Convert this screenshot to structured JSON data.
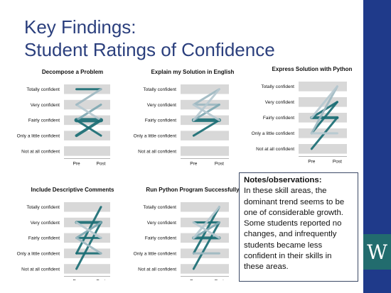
{
  "slide": {
    "title_line1": "Key Findings:",
    "title_line2": "Student Ratings of Confidence"
  },
  "notes": {
    "heading": "Notes/observations:",
    "body": "In these skill areas, the dominant trend seems to be one of considerable growth. Some students reported no changes, and infrequently students became less confident in their skills in these areas."
  },
  "chart_data": [
    {
      "type": "line",
      "title": "Decompose a Problem",
      "categories": [
        "Pre",
        "Post"
      ],
      "y_categories": [
        "Not at all confident",
        "Only a little confident",
        "Fairly confident",
        "Very confident",
        "Totally confident"
      ],
      "ylim": [
        0,
        4
      ],
      "series": [
        {
          "values": [
            4,
            4
          ],
          "color": "#1b6e75",
          "width": 3
        },
        {
          "values": [
            2,
            2
          ],
          "color": "#1b6e75",
          "width": 6
        },
        {
          "values": [
            2,
            3
          ],
          "color": "#7fa9b3",
          "width": 3
        },
        {
          "values": [
            3,
            2
          ],
          "color": "#b7c9d1",
          "width": 3
        },
        {
          "values": [
            1,
            2
          ],
          "color": "#1b6e75",
          "width": 4
        },
        {
          "values": [
            2,
            1
          ],
          "color": "#1b6e75",
          "width": 3
        },
        {
          "values": [
            3,
            4
          ],
          "color": "#9fb9c2",
          "width": 3
        }
      ]
    },
    {
      "type": "line",
      "title": "Explain my Solution in English",
      "categories": [
        "Pre",
        "Post"
      ],
      "y_categories": [
        "Not at all confident",
        "Only a little confident",
        "Fairly confident",
        "Very confident",
        "Totally confident"
      ],
      "ylim": [
        0,
        4
      ],
      "series": [
        {
          "values": [
            2,
            2
          ],
          "color": "#1b6e75",
          "width": 5
        },
        {
          "values": [
            3,
            3
          ],
          "color": "#9fb9c2",
          "width": 3
        },
        {
          "values": [
            3,
            4
          ],
          "color": "#9fb9c2",
          "width": 3
        },
        {
          "values": [
            2,
            3
          ],
          "color": "#7fa9b3",
          "width": 3
        },
        {
          "values": [
            1,
            2
          ],
          "color": "#1b6e75",
          "width": 3
        },
        {
          "values": [
            3,
            2
          ],
          "color": "#b7c9d1",
          "width": 3
        },
        {
          "values": [
            2,
            4
          ],
          "color": "#b7c9d1",
          "width": 3
        }
      ]
    },
    {
      "type": "line",
      "title": "Express Solution with Python",
      "categories": [
        "Pre",
        "Post"
      ],
      "y_categories": [
        "Not at all confident",
        "Only a little confident",
        "Fairly confident",
        "Very confident",
        "Totally confident"
      ],
      "ylim": [
        0,
        4
      ],
      "series": [
        {
          "values": [
            2,
            2
          ],
          "color": "#1b6e75",
          "width": 4
        },
        {
          "values": [
            2,
            3
          ],
          "color": "#1b6e75",
          "width": 3
        },
        {
          "values": [
            1,
            3
          ],
          "color": "#1b6e75",
          "width": 3
        },
        {
          "values": [
            0,
            2
          ],
          "color": "#1b6e75",
          "width": 3
        },
        {
          "values": [
            1,
            4
          ],
          "color": "#9fb9c2",
          "width": 3
        },
        {
          "values": [
            1,
            1
          ],
          "color": "#b7c9d1",
          "width": 3
        },
        {
          "values": [
            2,
            4
          ],
          "color": "#b7c9d1",
          "width": 3
        }
      ]
    },
    {
      "type": "line",
      "title": "Include Descriptive Comments",
      "categories": [
        "Pre",
        "Post"
      ],
      "y_categories": [
        "Not at all confident",
        "Only a little confident",
        "Fairly confident",
        "Very confident",
        "Totally confident"
      ],
      "ylim": [
        0,
        4
      ],
      "series": [
        {
          "values": [
            3,
            3
          ],
          "color": "#1b6e75",
          "width": 4
        },
        {
          "values": [
            2,
            2
          ],
          "color": "#1b6e75",
          "width": 3
        },
        {
          "values": [
            1,
            1
          ],
          "color": "#1b6e75",
          "width": 3
        },
        {
          "values": [
            0,
            3
          ],
          "color": "#1b6e75",
          "width": 3
        },
        {
          "values": [
            1,
            4
          ],
          "color": "#1b6e75",
          "width": 3
        },
        {
          "values": [
            2,
            3
          ],
          "color": "#7fa9b3",
          "width": 3
        },
        {
          "values": [
            3,
            2
          ],
          "color": "#b7c9d1",
          "width": 3
        },
        {
          "values": [
            2,
            1
          ],
          "color": "#9fb9c2",
          "width": 3
        }
      ]
    },
    {
      "type": "line",
      "title": "Run Python Program Successfully",
      "categories": [
        "Pre",
        "Post"
      ],
      "y_categories": [
        "Not at all confident",
        "Only a little confident",
        "Fairly confident",
        "Very confident",
        "Totally confident"
      ],
      "ylim": [
        0,
        4
      ],
      "series": [
        {
          "values": [
            2,
            2
          ],
          "color": "#1b6e75",
          "width": 4
        },
        {
          "values": [
            3,
            3
          ],
          "color": "#1b6e75",
          "width": 3
        },
        {
          "values": [
            0,
            3
          ],
          "color": "#1b6e75",
          "width": 3
        },
        {
          "values": [
            1,
            4
          ],
          "color": "#1b6e75",
          "width": 3
        },
        {
          "values": [
            2,
            3
          ],
          "color": "#7fa9b3",
          "width": 3
        },
        {
          "values": [
            3,
            2
          ],
          "color": "#b7c9d1",
          "width": 3
        },
        {
          "values": [
            2,
            4
          ],
          "color": "#b7c9d1",
          "width": 3
        },
        {
          "values": [
            1,
            1
          ],
          "color": "#9fb9c2",
          "width": 3
        }
      ]
    }
  ],
  "colors": {
    "title": "#2b3f7d",
    "sidebar": "#1f3a8a",
    "logo_box": "#226c6e",
    "grid_band": "#d8d8d8"
  },
  "logo": {
    "letter": "W"
  }
}
